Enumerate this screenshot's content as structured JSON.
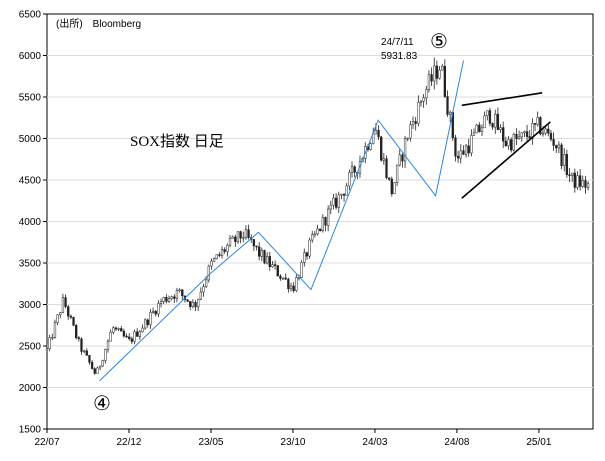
{
  "chart_data": {
    "type": "candlestick",
    "source": "(出所)　Bloomberg",
    "title": "SOX指数 日足",
    "xlabel": "",
    "ylabel": "",
    "ylim": [
      1500,
      6500
    ],
    "y_ticks": [
      1500,
      2000,
      2500,
      3000,
      3500,
      4000,
      4500,
      5000,
      5500,
      6000,
      6500
    ],
    "x_tick_labels": [
      "22/07",
      "22/12",
      "23/05",
      "23/10",
      "24/03",
      "24/08",
      "25/01"
    ],
    "x_tick_months": [
      0,
      5,
      10,
      15,
      20,
      25,
      30
    ],
    "x_range_months": [
      0,
      33.3
    ],
    "grid": true,
    "monthly_close": [
      [
        "22/07",
        2450
      ],
      [
        "22/08",
        3050
      ],
      [
        "22/09",
        2500
      ],
      [
        "22/10",
        2150
      ],
      [
        "22/11",
        2720
      ],
      [
        "22/12",
        2550
      ],
      [
        "23/01",
        2780
      ],
      [
        "23/02",
        3050
      ],
      [
        "23/03",
        3150
      ],
      [
        "23/04",
        2980
      ],
      [
        "23/05",
        3480
      ],
      [
        "23/06",
        3700
      ],
      [
        "23/07",
        3850
      ],
      [
        "23/08",
        3600
      ],
      [
        "23/09",
        3400
      ],
      [
        "23/10",
        3200
      ],
      [
        "23/11",
        3700
      ],
      [
        "23/12",
        4050
      ],
      [
        "24/01",
        4350
      ],
      [
        "24/02",
        4700
      ],
      [
        "24/03",
        5150
      ],
      [
        "24/04",
        4350
      ],
      [
        "24/05",
        5050
      ],
      [
        "24/06",
        5550
      ],
      [
        "24/07",
        5900
      ],
      [
        "24/08",
        4750
      ],
      [
        "24/09",
        5000
      ],
      [
        "24/10",
        5300
      ],
      [
        "24/11",
        4950
      ],
      [
        "24/12",
        5000
      ],
      [
        "25/01",
        5150
      ],
      [
        "25/02",
        4950
      ],
      [
        "25/03",
        4500
      ],
      [
        "25/04",
        4430
      ]
    ],
    "wave_lines": [
      [
        [
          3.2,
          2080
        ],
        [
          10.0,
          3380
        ],
        [
          12.9,
          3870
        ],
        [
          16.1,
          3180
        ],
        [
          20.2,
          5220
        ],
        [
          23.7,
          4310
        ],
        [
          25.4,
          5940
        ]
      ]
    ],
    "trend_lines": [
      [
        [
          25.3,
          5400
        ],
        [
          30.2,
          5550
        ]
      ],
      [
        [
          25.3,
          4280
        ],
        [
          30.7,
          5200
        ]
      ]
    ],
    "annotations": {
      "peak_date": "24/7/11",
      "peak_value": "5931.83",
      "wave4": "④",
      "wave5": "⑤"
    }
  }
}
